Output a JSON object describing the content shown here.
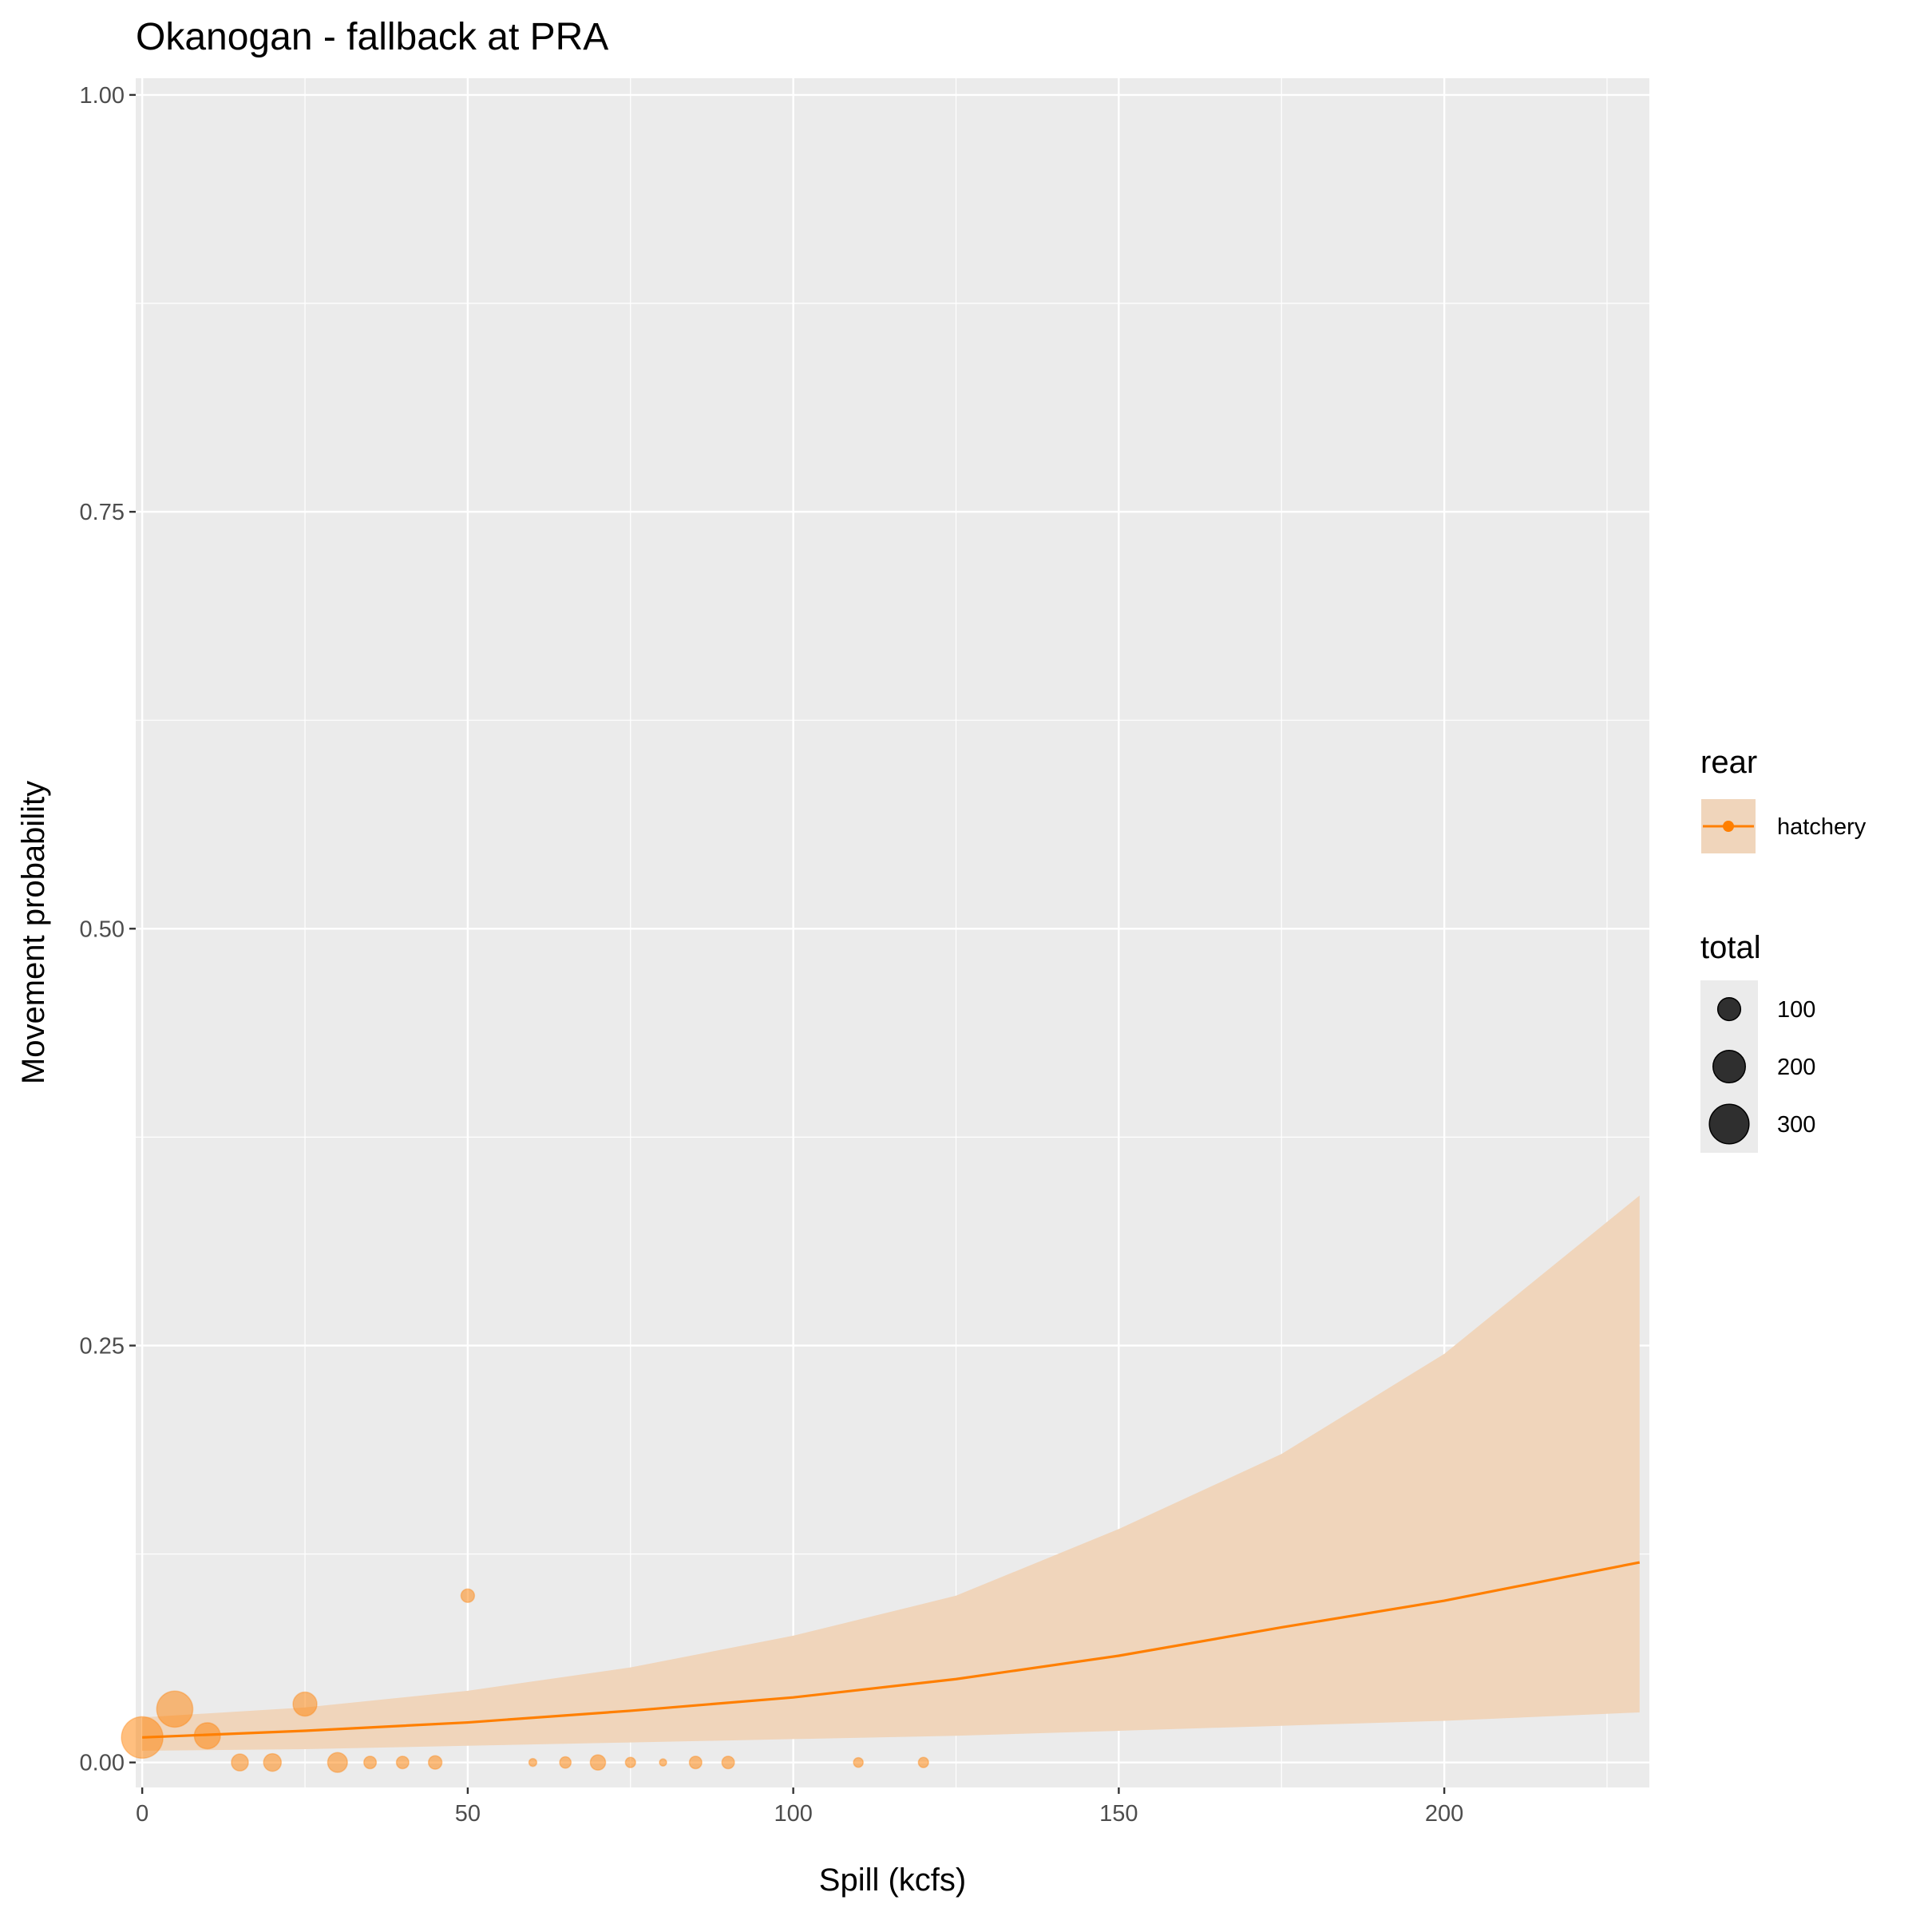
{
  "chart_data": {
    "type": "scatter",
    "title": "Okanogan - fallback at PRA",
    "xlabel": "Spill (kcfs)",
    "ylabel": "Movement probability",
    "xlim": [
      -1,
      231.5
    ],
    "ylim": [
      -0.015,
      1.01
    ],
    "x_ticks": [
      {
        "value": 0,
        "label": "0"
      },
      {
        "value": 50,
        "label": "50"
      },
      {
        "value": 100,
        "label": "100"
      },
      {
        "value": 150,
        "label": "150"
      },
      {
        "value": 200,
        "label": "200"
      }
    ],
    "y_ticks": [
      {
        "value": 0,
        "label": "0.00"
      },
      {
        "value": 0.25,
        "label": "0.25"
      },
      {
        "value": 0.5,
        "label": "0.50"
      },
      {
        "value": 0.75,
        "label": "0.75"
      },
      {
        "value": 1,
        "label": "1.00"
      }
    ],
    "grid": true,
    "panel_background": "#ebebeb",
    "series": [
      {
        "name": "hatchery",
        "color": "#ff7f00",
        "fill_color": "#f0d5bb",
        "points": [
          {
            "x": 0,
            "y": 0.015,
            "total": 330
          },
          {
            "x": 5,
            "y": 0.032,
            "total": 250
          },
          {
            "x": 10,
            "y": 0.016,
            "total": 130
          },
          {
            "x": 15,
            "y": 0.0,
            "total": 55
          },
          {
            "x": 20,
            "y": 0.0,
            "total": 60
          },
          {
            "x": 25,
            "y": 0.035,
            "total": 110
          },
          {
            "x": 30,
            "y": 0.0,
            "total": 75
          },
          {
            "x": 35,
            "y": 0.0,
            "total": 30
          },
          {
            "x": 40,
            "y": 0.0,
            "total": 30
          },
          {
            "x": 45,
            "y": 0.0,
            "total": 35
          },
          {
            "x": 50,
            "y": 0.1,
            "total": 35
          },
          {
            "x": 60,
            "y": 0.0,
            "total": 12
          },
          {
            "x": 65,
            "y": 0.0,
            "total": 25
          },
          {
            "x": 70,
            "y": 0.0,
            "total": 45
          },
          {
            "x": 75,
            "y": 0.0,
            "total": 20
          },
          {
            "x": 80,
            "y": 0.0,
            "total": 10
          },
          {
            "x": 85,
            "y": 0.0,
            "total": 30
          },
          {
            "x": 90,
            "y": 0.0,
            "total": 30
          },
          {
            "x": 110,
            "y": 0.0,
            "total": 18
          },
          {
            "x": 120,
            "y": 0.0,
            "total": 20
          }
        ],
        "fit": {
          "x": [
            0,
            25,
            50,
            75,
            100,
            125,
            150,
            175,
            200,
            230
          ],
          "y": [
            0.015,
            0.019,
            0.024,
            0.031,
            0.039,
            0.05,
            0.064,
            0.081,
            0.097,
            0.12
          ],
          "lower": [
            0.007,
            0.008,
            0.01,
            0.012,
            0.014,
            0.016,
            0.019,
            0.022,
            0.025,
            0.03
          ],
          "upper": [
            0.027,
            0.033,
            0.043,
            0.057,
            0.076,
            0.1,
            0.14,
            0.185,
            0.245,
            0.34
          ]
        }
      }
    ],
    "legend": {
      "position": "right",
      "colour_title": "rear",
      "colour_items": [
        "hatchery"
      ],
      "size_title": "total",
      "size_items": [
        {
          "label": "100",
          "value": 100
        },
        {
          "label": "200",
          "value": 200
        },
        {
          "label": "300",
          "value": 300
        }
      ]
    }
  }
}
